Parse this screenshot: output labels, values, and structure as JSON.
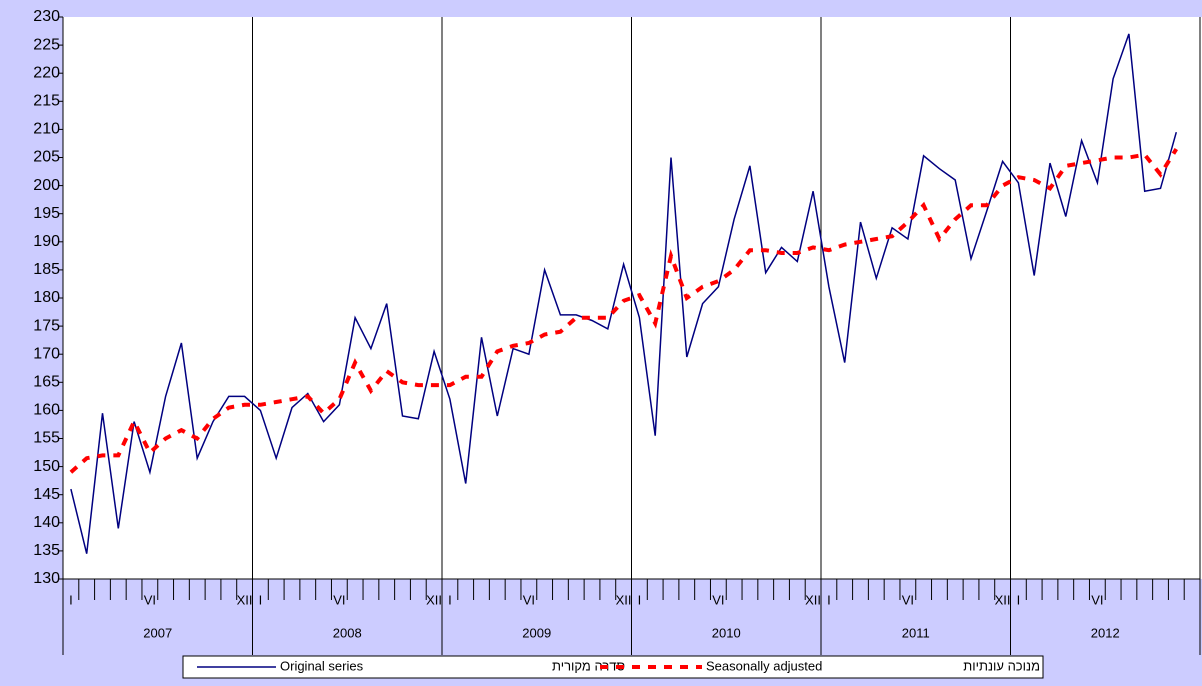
{
  "chart_data": {
    "type": "line",
    "categories": [
      "I",
      null,
      null,
      null,
      null,
      "VI",
      null,
      null,
      null,
      null,
      null,
      "XII",
      "I",
      null,
      null,
      null,
      null,
      "VI",
      null,
      null,
      null,
      null,
      null,
      "XII",
      "I",
      null,
      null,
      null,
      null,
      "VI",
      null,
      null,
      null,
      null,
      null,
      "XII",
      "I",
      null,
      null,
      null,
      null,
      "VI",
      null,
      null,
      null,
      null,
      null,
      "XII",
      "I",
      null,
      null,
      null,
      null,
      "VI",
      null,
      null,
      null,
      null,
      null,
      "XII",
      "I",
      null,
      null,
      null,
      null,
      "VI",
      null,
      null,
      null,
      null,
      null,
      null
    ],
    "years": [
      "2007",
      "2008",
      "2009",
      "2010",
      "2011",
      "2012"
    ],
    "series": [
      {
        "name": "Original series",
        "name_he": "סדרה מקורית",
        "color": "#000080",
        "dash": false,
        "values": [
          146,
          134.5,
          159.5,
          139,
          158,
          149,
          162.5,
          172,
          151.5,
          158,
          162.5,
          162.5,
          160,
          151.5,
          160.5,
          163,
          158,
          161,
          176.5,
          171,
          179,
          159,
          158.5,
          170.5,
          162,
          147,
          173,
          159,
          171,
          170,
          185,
          177,
          177,
          176,
          174.5,
          186,
          176.5,
          155.5,
          205,
          169.5,
          179,
          182,
          194,
          203.5,
          184.5,
          189,
          186.5,
          199,
          182,
          168.5,
          193.5,
          183.5,
          192.5,
          190.5,
          205.3,
          203,
          201,
          187,
          195.5,
          204.3,
          200.5,
          184,
          204,
          194.5,
          208,
          200.5,
          219,
          227,
          199,
          199.5,
          209.5,
          null
        ]
      },
      {
        "name": "Seasonally adjusted",
        "name_he": "מנוכה עונתיות",
        "color": "#ff0000",
        "dash": true,
        "values": [
          149,
          151.5,
          152,
          152,
          158,
          152.5,
          155,
          156.5,
          155,
          158.5,
          160.5,
          161,
          161,
          161.5,
          162,
          162.5,
          159.5,
          162,
          168.5,
          163.5,
          167,
          165,
          164.5,
          164.5,
          164.5,
          166,
          166,
          170.5,
          171.5,
          172,
          173.5,
          174,
          176.5,
          176.5,
          176.5,
          179.5,
          180.5,
          175.5,
          187.5,
          180,
          182,
          183,
          185,
          188.5,
          188.5,
          188,
          188,
          189,
          188.5,
          189.5,
          190,
          190.5,
          191,
          193.5,
          196.5,
          190.5,
          194,
          196.5,
          196.5,
          200,
          201.5,
          201,
          199.5,
          203.5,
          204,
          204.5,
          205,
          205,
          205.5,
          202,
          206.5,
          null
        ]
      }
    ],
    "ylim": [
      130,
      230
    ],
    "yticks": [
      130,
      135,
      140,
      145,
      150,
      155,
      160,
      165,
      170,
      175,
      180,
      185,
      190,
      195,
      200,
      205,
      210,
      215,
      220,
      225,
      230
    ],
    "legend": "bottom"
  }
}
